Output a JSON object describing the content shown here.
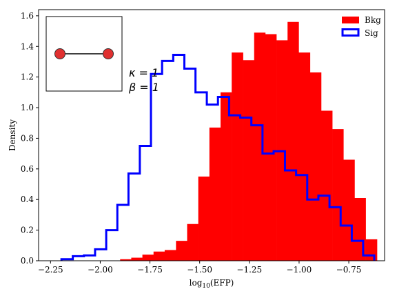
{
  "chart_data": {
    "type": "histogram",
    "xlabel": "log",
    "xlabel_sub": "10",
    "xlabel_tail": "(EFP)",
    "ylabel": "Density",
    "xlim": [
      -2.31,
      -0.57
    ],
    "ylim": [
      0,
      1.64
    ],
    "xticks": [
      -2.25,
      -2.0,
      -1.75,
      -1.5,
      -1.25,
      -1.0,
      -0.75
    ],
    "xtick_labels": [
      "−2.25",
      "−2.00",
      "−1.75",
      "−1.50",
      "−1.25",
      "−1.00",
      "−0.75"
    ],
    "yticks": [
      0.0,
      0.2,
      0.4,
      0.6,
      0.8,
      1.0,
      1.2,
      1.4,
      1.6
    ],
    "ytick_labels": [
      "0.0",
      "0.2",
      "0.4",
      "0.6",
      "0.8",
      "1.0",
      "1.2",
      "1.4",
      "1.6"
    ],
    "bin_width": 0.05615,
    "series": [
      {
        "name": "Bkg",
        "style": "filled",
        "color": "#ff0000",
        "bin_edges": [
          -1.9,
          -1.844,
          -1.788,
          -1.732,
          -1.676,
          -1.619,
          -1.563,
          -1.507,
          -1.451,
          -1.395,
          -1.339,
          -1.282,
          -1.226,
          -1.17,
          -1.114,
          -1.058,
          -1.002,
          -0.945,
          -0.889,
          -0.833,
          -0.777,
          -0.721,
          -0.665,
          -0.608
        ],
        "values": [
          0.01,
          0.02,
          0.04,
          0.06,
          0.07,
          0.13,
          0.24,
          0.55,
          0.87,
          1.1,
          1.36,
          1.31,
          1.49,
          1.48,
          1.44,
          1.56,
          1.36,
          1.23,
          0.98,
          0.86,
          0.66,
          0.41,
          0.14
        ]
      },
      {
        "name": "Sig",
        "style": "step",
        "color": "#0000ff",
        "bin_edges": [
          -2.195,
          -2.138,
          -2.082,
          -2.026,
          -1.97,
          -1.914,
          -1.858,
          -1.801,
          -1.745,
          -1.689,
          -1.633,
          -1.577,
          -1.521,
          -1.464,
          -1.408,
          -1.352,
          -1.296,
          -1.24,
          -1.184,
          -1.128,
          -1.071,
          -1.015,
          -0.959,
          -0.903,
          -0.847,
          -0.791,
          -0.735,
          -0.678,
          -0.622
        ],
        "values": [
          0.01,
          0.03,
          0.035,
          0.075,
          0.2,
          0.365,
          0.57,
          0.75,
          1.22,
          1.305,
          1.345,
          1.255,
          1.1,
          1.02,
          1.07,
          0.95,
          0.935,
          0.885,
          0.7,
          0.715,
          0.59,
          0.56,
          0.4,
          0.425,
          0.35,
          0.23,
          0.13,
          0.035
        ]
      }
    ],
    "legend": {
      "placement": "top-right",
      "entries": [
        "Bkg",
        "Sig"
      ]
    },
    "annotations": {
      "kappa": "κ = 1",
      "beta": "β = 1"
    },
    "inset": {
      "description_nodes": 2,
      "node_color": "#e03030"
    },
    "grid": false
  }
}
